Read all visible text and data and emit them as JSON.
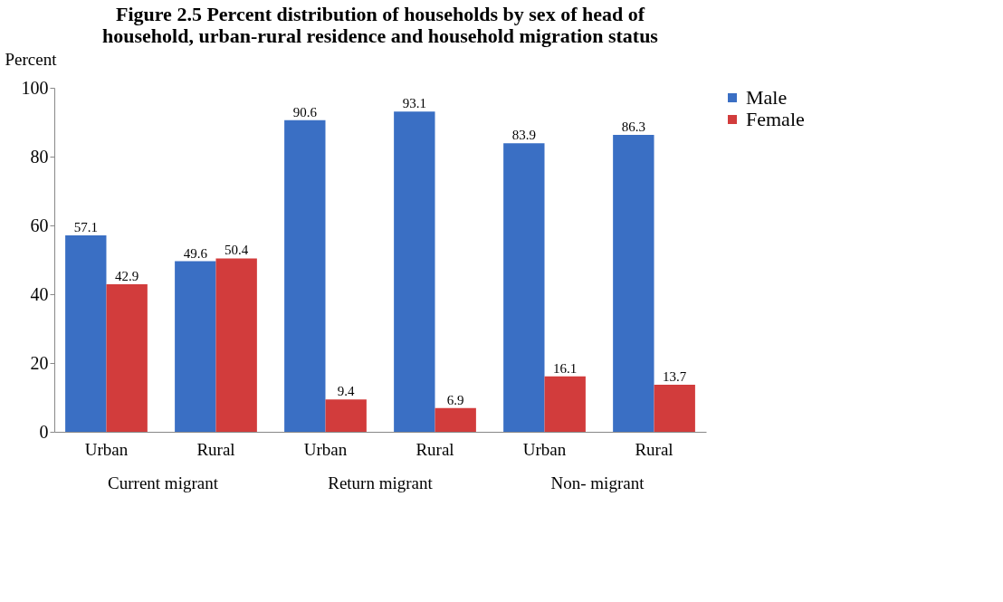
{
  "chart_data": {
    "type": "bar",
    "title": "Figure 2.5   Percent distribution of households by sex of head of household, urban-rural residence and household migration status",
    "ylabel": "Percent",
    "categories": [
      "Urban",
      "Rural",
      "Urban",
      "Rural",
      "Urban",
      "Rural"
    ],
    "series": [
      {
        "name": "Male",
        "color": "#3a6fc4",
        "values": [
          57.1,
          49.6,
          90.6,
          93.1,
          83.9,
          86.3
        ]
      },
      {
        "name": "Female",
        "color": "#d23c3c",
        "values": [
          42.9,
          50.4,
          9.4,
          6.9,
          16.1,
          13.7
        ]
      }
    ],
    "annotations": [
      "Current migrant",
      "Return migrant",
      "Non- migrant"
    ],
    "ylim": [
      0,
      100
    ],
    "yticks": [
      0,
      20,
      40,
      60,
      80,
      100
    ],
    "grid": false,
    "legend": "right",
    "data_labels": true
  }
}
